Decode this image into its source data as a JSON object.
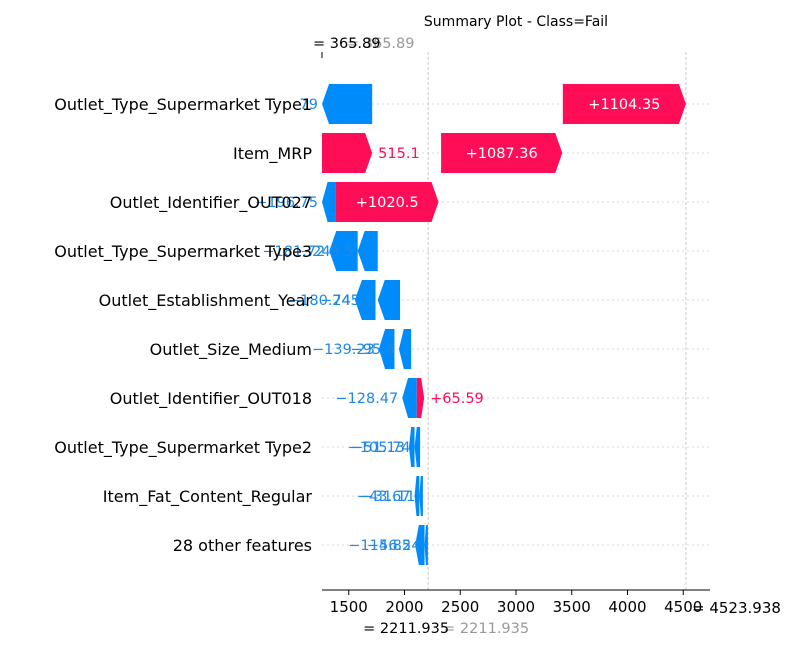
{
  "chart_data": {
    "type": "waterfall",
    "title": "Summary Plot - Class=Fail",
    "base_value": 2211.935,
    "final_value": 4523.938,
    "base_label": "= 2211.935",
    "base_label_ghost": "= 2211.935",
    "final_label": "= 4523.938",
    "top_label": "= 365.89",
    "top_label_ghost": "= 365.89",
    "xlim": [
      1260,
      4740
    ],
    "x_ticks": [
      {
        "value": 1500,
        "label": "1500"
      },
      {
        "value": 2000,
        "label": "2000"
      },
      {
        "value": 2500,
        "label": "2500"
      },
      {
        "value": 3000,
        "label": "3000"
      },
      {
        "value": 3500,
        "label": "3500"
      },
      {
        "value": 4000,
        "label": "4000"
      },
      {
        "value": 4500,
        "label": "4500"
      }
    ],
    "features": [
      {
        "name": "Outlet_Type_Supermarket Type1",
        "segments": [
          {
            "start": 1260,
            "end": 1710,
            "sign": "neg",
            "label": "79"
          },
          {
            "start": 3420,
            "end": 4524,
            "sign": "pos",
            "label": "+1104.35"
          }
        ]
      },
      {
        "name": "Item_MRP",
        "segments": [
          {
            "start": 1260,
            "end": 1710,
            "sign": "pos",
            "label": "515.1"
          },
          {
            "start": 2328,
            "end": 3415,
            "sign": "pos",
            "label": "+1087.36"
          }
        ]
      },
      {
        "name": "Outlet_Identifier_OUT027",
        "segments": [
          {
            "start": 1260,
            "end": 1385,
            "sign": "neg",
            "label": "−196.75"
          },
          {
            "start": 1385,
            "end": 2305,
            "sign": "pos",
            "label": "+1020.5"
          }
        ]
      },
      {
        "name": "Outlet_Type_Supermarket Type3",
        "segments": [
          {
            "start": 1325,
            "end": 1580,
            "sign": "neg",
            "label": "−181.72"
          },
          {
            "start": 1580,
            "end": 1760,
            "sign": "neg",
            "label": "−249.5"
          }
        ]
      },
      {
        "name": "Outlet_Establishment_Year",
        "segments": [
          {
            "start": 1555,
            "end": 1740,
            "sign": "neg",
            "label": "−180.74"
          },
          {
            "start": 1760,
            "end": 1960,
            "sign": "neg",
            "label": "−245.1"
          }
        ]
      },
      {
        "name": "Outlet_Size_Medium",
        "segments": [
          {
            "start": 1770,
            "end": 1910,
            "sign": "neg",
            "label": "−139.23"
          },
          {
            "start": 1950,
            "end": 2060,
            "sign": "neg",
            "label": "−95.6"
          }
        ]
      },
      {
        "name": "Outlet_Identifier_OUT018",
        "segments": [
          {
            "start": 1980,
            "end": 2110,
            "sign": "neg",
            "label": "−128.47"
          },
          {
            "start": 2110,
            "end": 2176,
            "sign": "pos",
            "label": "+65.59"
          }
        ]
      },
      {
        "name": "Outlet_Type_Supermarket Type2",
        "segments": [
          {
            "start": 2040,
            "end": 2090,
            "sign": "neg",
            "label": "−51.13"
          },
          {
            "start": 2090,
            "end": 2140,
            "sign": "neg",
            "label": "−105.74"
          }
        ]
      },
      {
        "name": "Item_Fat_Content_Regular",
        "segments": [
          {
            "start": 2090,
            "end": 2133,
            "sign": "neg",
            "label": "−43.67"
          },
          {
            "start": 2133,
            "end": 2165,
            "sign": "neg",
            "label": "−31.11"
          }
        ]
      },
      {
        "name": "28 other features",
        "segments": [
          {
            "start": 2095,
            "end": 2180,
            "sign": "neg",
            "label": "−114.85"
          },
          {
            "start": 2180,
            "end": 2210,
            "sign": "neg",
            "label": "−56.24"
          }
        ]
      }
    ],
    "colors": {
      "pos": "#ff0d57",
      "neg": "#008bfb",
      "pos_text": "#ff0d57",
      "neg_text": "#1e88e5"
    }
  }
}
